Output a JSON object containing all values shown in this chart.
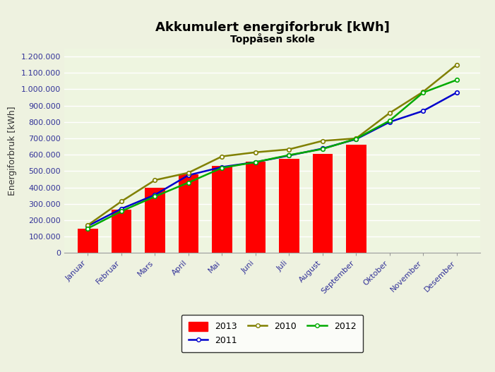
{
  "title": "Akkumulert energiforbruk [kWh]",
  "subtitle": "Toppåsen skole",
  "ylabel": "Energiforbruk [kWh]",
  "background_color": "#eef2e0",
  "plot_bg_color": "#eef5e0",
  "months": [
    "Januar",
    "Februar",
    "Mars",
    "April",
    "Mai",
    "Juni",
    "Juli",
    "August",
    "September",
    "Oktober",
    "November",
    "Desember"
  ],
  "bars_2013": [
    150000,
    265000,
    400000,
    480000,
    530000,
    560000,
    575000,
    607000,
    660000,
    null,
    null,
    null
  ],
  "line_2011": [
    165000,
    270000,
    355000,
    475000,
    525000,
    555000,
    595000,
    638000,
    695000,
    800000,
    868000,
    980000
  ],
  "line_2010": [
    170000,
    315000,
    445000,
    490000,
    590000,
    615000,
    633000,
    685000,
    700000,
    855000,
    985000,
    1150000
  ],
  "line_2012": [
    150000,
    255000,
    345000,
    430000,
    520000,
    555000,
    598000,
    635000,
    698000,
    808000,
    980000,
    1057000
  ],
  "bar_color": "#ff0000",
  "line_2011_color": "#0000cc",
  "line_2010_color": "#808000",
  "line_2012_color": "#00aa00",
  "ylim": [
    0,
    1250000
  ],
  "yticks": [
    0,
    100000,
    200000,
    300000,
    400000,
    500000,
    600000,
    700000,
    800000,
    900000,
    1000000,
    1100000,
    1200000
  ]
}
